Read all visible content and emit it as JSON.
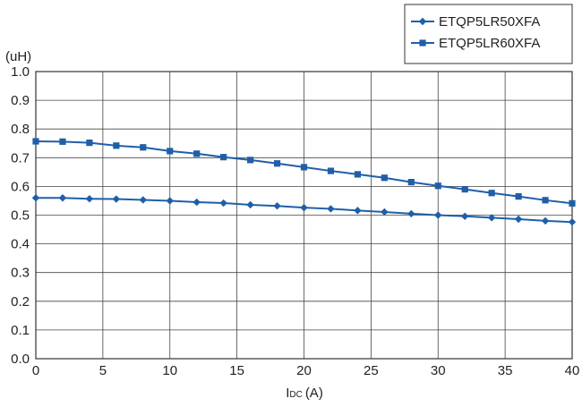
{
  "chart_data": {
    "type": "line",
    "title": "",
    "ylabel": "(uH)",
    "xlabel_main": "I",
    "xlabel_sub": "DC",
    "xlabel_unit": "(A)",
    "xlim": [
      0,
      40
    ],
    "ylim": [
      0,
      1.0
    ],
    "xticks": [
      "0",
      "5",
      "10",
      "15",
      "20",
      "25",
      "30",
      "35",
      "40"
    ],
    "yticks": [
      "0.0",
      "0.1",
      "0.2",
      "0.3",
      "0.4",
      "0.5",
      "0.6",
      "0.7",
      "0.8",
      "0.9",
      "1.0"
    ],
    "grid": true,
    "legend_position": "top-right",
    "series_color": "#1f5fa8",
    "series": [
      {
        "name": "ETQP5LR50XFA",
        "marker": "diamond",
        "x": [
          0,
          2,
          4,
          6,
          8,
          10,
          12,
          14,
          16,
          18,
          20,
          22,
          24,
          26,
          28,
          30,
          32,
          34,
          36,
          38,
          40
        ],
        "y": [
          0.56,
          0.56,
          0.557,
          0.556,
          0.553,
          0.55,
          0.545,
          0.542,
          0.536,
          0.532,
          0.526,
          0.522,
          0.516,
          0.511,
          0.505,
          0.5,
          0.496,
          0.491,
          0.486,
          0.48,
          0.476
        ]
      },
      {
        "name": "ETQP5LR60XFA",
        "marker": "square",
        "x": [
          0,
          2,
          4,
          6,
          8,
          10,
          12,
          14,
          16,
          18,
          20,
          22,
          24,
          26,
          28,
          30,
          32,
          34,
          36,
          38,
          40
        ],
        "y": [
          0.757,
          0.756,
          0.752,
          0.742,
          0.736,
          0.723,
          0.714,
          0.702,
          0.692,
          0.68,
          0.667,
          0.654,
          0.642,
          0.63,
          0.615,
          0.602,
          0.59,
          0.577,
          0.565,
          0.552,
          0.541
        ]
      }
    ]
  }
}
